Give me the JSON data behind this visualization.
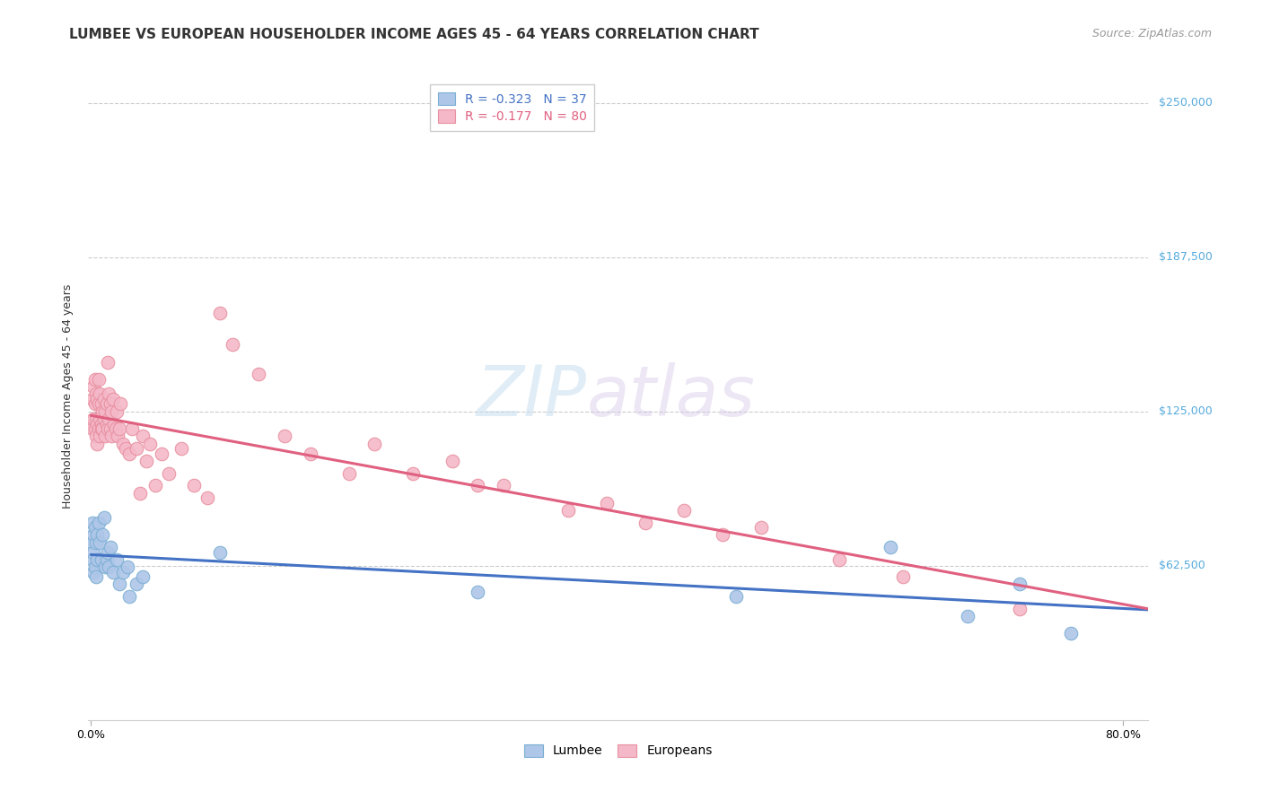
{
  "title": "LUMBEE VS EUROPEAN HOUSEHOLDER INCOME AGES 45 - 64 YEARS CORRELATION CHART",
  "source": "Source: ZipAtlas.com",
  "ylabel": "Householder Income Ages 45 - 64 years",
  "ytick_labels": [
    "$62,500",
    "$125,000",
    "$187,500",
    "$250,000"
  ],
  "ytick_values": [
    62500,
    125000,
    187500,
    250000
  ],
  "ymin": 0,
  "ymax": 262500,
  "xmin": -0.002,
  "xmax": 0.82,
  "legend_R_lumbee": "-0.323",
  "legend_N_lumbee": "37",
  "legend_R_euro": "-0.177",
  "legend_N_euro": "80",
  "watermark_zip": "ZIP",
  "watermark_atlas": "atlas",
  "color_lumbee_fill": "#aec6e8",
  "color_lumbee_edge": "#7bafd4",
  "color_euro_fill": "#f4b8c8",
  "color_euro_edge": "#e890a0",
  "color_lumbee_line": "#4472c4",
  "color_euro_line": "#e06080",
  "color_ytick": "#55aadd",
  "title_fontsize": 11,
  "source_fontsize": 9,
  "ylabel_fontsize": 9,
  "tick_fontsize": 9,
  "legend_fontsize": 10,
  "lumbee_x": [
    0.001,
    0.001,
    0.001,
    0.002,
    0.002,
    0.002,
    0.003,
    0.003,
    0.004,
    0.004,
    0.005,
    0.005,
    0.006,
    0.007,
    0.008,
    0.009,
    0.01,
    0.011,
    0.012,
    0.013,
    0.014,
    0.015,
    0.017,
    0.02,
    0.022,
    0.025,
    0.028,
    0.03,
    0.035,
    0.04,
    0.1,
    0.3,
    0.5,
    0.62,
    0.68,
    0.72,
    0.76
  ],
  "lumbee_y": [
    80000,
    72000,
    65000,
    75000,
    68000,
    60000,
    78000,
    62000,
    72000,
    58000,
    75000,
    65000,
    80000,
    72000,
    65000,
    75000,
    82000,
    62000,
    65000,
    68000,
    62000,
    70000,
    60000,
    65000,
    55000,
    60000,
    62000,
    50000,
    55000,
    58000,
    68000,
    52000,
    50000,
    70000,
    42000,
    55000,
    35000
  ],
  "euro_x": [
    0.001,
    0.001,
    0.002,
    0.002,
    0.003,
    0.003,
    0.003,
    0.004,
    0.004,
    0.004,
    0.005,
    0.005,
    0.005,
    0.006,
    0.006,
    0.006,
    0.007,
    0.007,
    0.007,
    0.008,
    0.008,
    0.008,
    0.009,
    0.009,
    0.01,
    0.01,
    0.011,
    0.011,
    0.012,
    0.012,
    0.013,
    0.013,
    0.014,
    0.014,
    0.015,
    0.015,
    0.016,
    0.016,
    0.017,
    0.018,
    0.019,
    0.02,
    0.021,
    0.022,
    0.023,
    0.025,
    0.027,
    0.03,
    0.032,
    0.035,
    0.038,
    0.04,
    0.043,
    0.046,
    0.05,
    0.055,
    0.06,
    0.07,
    0.08,
    0.09,
    0.1,
    0.11,
    0.13,
    0.15,
    0.17,
    0.2,
    0.22,
    0.25,
    0.28,
    0.3,
    0.32,
    0.37,
    0.4,
    0.43,
    0.46,
    0.49,
    0.52,
    0.58,
    0.63,
    0.72
  ],
  "euro_y": [
    130000,
    118000,
    135000,
    122000,
    138000,
    128000,
    118000,
    132000,
    122000,
    115000,
    130000,
    120000,
    112000,
    128000,
    138000,
    118000,
    132000,
    122000,
    115000,
    128000,
    120000,
    118000,
    125000,
    118000,
    130000,
    122000,
    125000,
    115000,
    128000,
    120000,
    145000,
    118000,
    132000,
    122000,
    128000,
    118000,
    125000,
    115000,
    130000,
    120000,
    118000,
    125000,
    115000,
    118000,
    128000,
    112000,
    110000,
    108000,
    118000,
    110000,
    92000,
    115000,
    105000,
    112000,
    95000,
    108000,
    100000,
    110000,
    95000,
    90000,
    165000,
    152000,
    140000,
    115000,
    108000,
    100000,
    112000,
    100000,
    105000,
    95000,
    95000,
    85000,
    88000,
    80000,
    85000,
    75000,
    78000,
    65000,
    58000,
    45000
  ]
}
